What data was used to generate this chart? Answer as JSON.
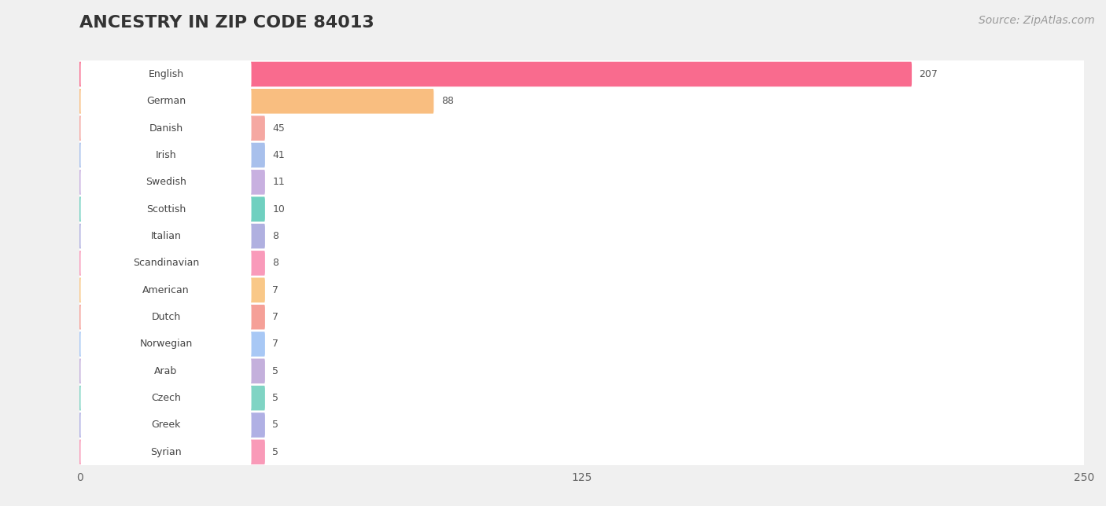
{
  "title": "ANCESTRY IN ZIP CODE 84013",
  "source": "Source: ZipAtlas.com",
  "categories": [
    "English",
    "German",
    "Danish",
    "Irish",
    "Swedish",
    "Scottish",
    "Italian",
    "Scandinavian",
    "American",
    "Dutch",
    "Norwegian",
    "Arab",
    "Czech",
    "Greek",
    "Syrian"
  ],
  "values": [
    207,
    88,
    45,
    41,
    11,
    10,
    8,
    8,
    7,
    7,
    7,
    5,
    5,
    5,
    5
  ],
  "bar_colors": [
    "#f96b8e",
    "#f9be80",
    "#f5a8a2",
    "#a8c0ec",
    "#c8b0e0",
    "#70d0c0",
    "#b0b0e0",
    "#f99aba",
    "#f9c888",
    "#f5a098",
    "#a8c8f5",
    "#c4b0dc",
    "#80d4c4",
    "#b0b0e4",
    "#f99ab8"
  ],
  "xlim": [
    0,
    250
  ],
  "xticks": [
    0,
    125,
    250
  ],
  "background_color": "#f0f0f0",
  "row_bg_color": "#ffffff",
  "title_fontsize": 16,
  "source_fontsize": 10,
  "bar_min_display": 50
}
